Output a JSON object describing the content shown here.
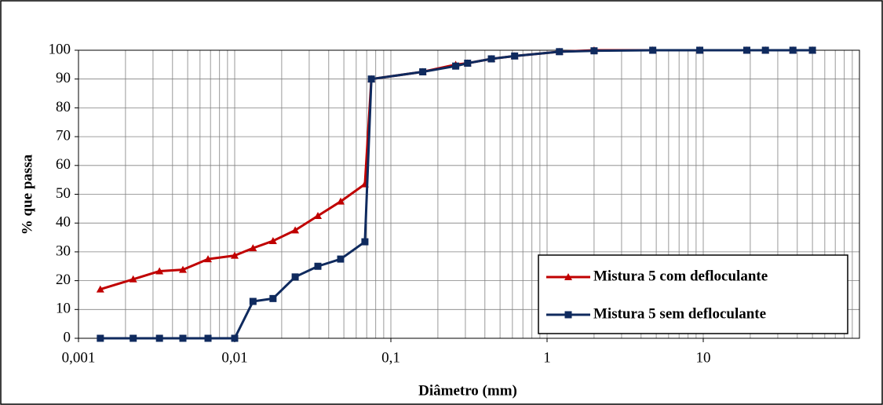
{
  "chart_data": {
    "type": "line",
    "xlabel": "Diâmetro (mm)",
    "ylabel": "% que passa",
    "xscale": "log",
    "grid": true,
    "minor_grid": true,
    "legend": "lower right",
    "xlim": [
      0.001,
      100
    ],
    "ylim": [
      0,
      100
    ],
    "xticks": [
      {
        "value": 0.001,
        "label": "0,001"
      },
      {
        "value": 0.01,
        "label": "0,01"
      },
      {
        "value": 0.1,
        "label": "0,1"
      },
      1,
      10
    ],
    "yticks": [
      0,
      10,
      20,
      30,
      40,
      50,
      60,
      70,
      80,
      90,
      100
    ],
    "x": [
      0.00138,
      0.00224,
      0.0033,
      0.00466,
      0.00675,
      0.01,
      0.0131,
      0.0176,
      0.0244,
      0.0341,
      0.0477,
      0.0682,
      0.075,
      0.16,
      0.26,
      0.31,
      0.44,
      0.62,
      1.2,
      2.0,
      4.75,
      9.5,
      19,
      25,
      37.5,
      50
    ],
    "series": [
      {
        "name": "Mistura 5 com defloculante",
        "color": "#c00000",
        "marker": "triangle",
        "values": [
          17,
          20.5,
          23.3,
          23.8,
          27.5,
          28.7,
          31.3,
          33.8,
          37.5,
          42.5,
          47.5,
          53.5,
          90,
          92.5,
          95,
          95.5,
          97,
          98,
          99.5,
          100,
          100,
          100,
          100,
          100,
          100,
          100
        ]
      },
      {
        "name": "Mistura 5 sem defloculante",
        "color": "#0f2a5e",
        "marker": "square",
        "values": [
          0,
          0,
          0,
          0,
          0,
          0,
          12.8,
          13.8,
          21.3,
          25,
          27.5,
          33.5,
          90,
          92.5,
          94.5,
          95.5,
          97,
          98,
          99.5,
          99.8,
          100,
          100,
          100,
          100,
          100,
          100
        ]
      }
    ]
  }
}
